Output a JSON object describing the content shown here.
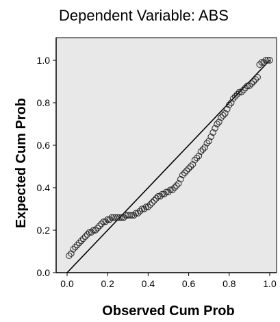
{
  "chart_data": {
    "type": "scatter",
    "title": "Dependent Variable: ABS",
    "xlabel": "Observed Cum Prob",
    "ylabel": "Expected Cum Prob",
    "xlim": [
      0.0,
      1.0
    ],
    "ylim": [
      0.0,
      1.0
    ],
    "x_ticks": [
      "0.0",
      "0.2",
      "0.4",
      "0.6",
      "0.8",
      "1.0"
    ],
    "y_ticks": [
      "0.0",
      "0.2",
      "0.4",
      "0.6",
      "0.8",
      "1.0"
    ],
    "grid": false,
    "reference_line": {
      "from": [
        0,
        0
      ],
      "to": [
        1,
        1
      ]
    },
    "series": [
      {
        "points": [
          [
            0.01,
            0.08
          ],
          [
            0.02,
            0.09
          ],
          [
            0.03,
            0.11
          ],
          [
            0.04,
            0.12
          ],
          [
            0.05,
            0.13
          ],
          [
            0.06,
            0.14
          ],
          [
            0.07,
            0.15
          ],
          [
            0.08,
            0.16
          ],
          [
            0.09,
            0.17
          ],
          [
            0.1,
            0.18
          ],
          [
            0.11,
            0.19
          ],
          [
            0.12,
            0.19
          ],
          [
            0.13,
            0.2
          ],
          [
            0.14,
            0.2
          ],
          [
            0.15,
            0.21
          ],
          [
            0.16,
            0.22
          ],
          [
            0.17,
            0.23
          ],
          [
            0.18,
            0.24
          ],
          [
            0.19,
            0.24
          ],
          [
            0.2,
            0.25
          ],
          [
            0.21,
            0.25
          ],
          [
            0.22,
            0.26
          ],
          [
            0.23,
            0.26
          ],
          [
            0.24,
            0.26
          ],
          [
            0.25,
            0.26
          ],
          [
            0.26,
            0.26
          ],
          [
            0.27,
            0.26
          ],
          [
            0.28,
            0.26
          ],
          [
            0.29,
            0.27
          ],
          [
            0.3,
            0.27
          ],
          [
            0.31,
            0.27
          ],
          [
            0.32,
            0.27
          ],
          [
            0.33,
            0.27
          ],
          [
            0.34,
            0.28
          ],
          [
            0.35,
            0.28
          ],
          [
            0.36,
            0.29
          ],
          [
            0.37,
            0.3
          ],
          [
            0.38,
            0.3
          ],
          [
            0.39,
            0.31
          ],
          [
            0.4,
            0.31
          ],
          [
            0.41,
            0.32
          ],
          [
            0.42,
            0.33
          ],
          [
            0.43,
            0.34
          ],
          [
            0.44,
            0.35
          ],
          [
            0.45,
            0.36
          ],
          [
            0.46,
            0.36
          ],
          [
            0.47,
            0.37
          ],
          [
            0.48,
            0.37
          ],
          [
            0.49,
            0.38
          ],
          [
            0.5,
            0.38
          ],
          [
            0.51,
            0.39
          ],
          [
            0.52,
            0.39
          ],
          [
            0.53,
            0.4
          ],
          [
            0.54,
            0.41
          ],
          [
            0.55,
            0.42
          ],
          [
            0.56,
            0.44
          ],
          [
            0.57,
            0.46
          ],
          [
            0.58,
            0.47
          ],
          [
            0.59,
            0.48
          ],
          [
            0.6,
            0.49
          ],
          [
            0.61,
            0.5
          ],
          [
            0.62,
            0.51
          ],
          [
            0.63,
            0.53
          ],
          [
            0.64,
            0.54
          ],
          [
            0.65,
            0.55
          ],
          [
            0.66,
            0.57
          ],
          [
            0.67,
            0.58
          ],
          [
            0.68,
            0.59
          ],
          [
            0.69,
            0.61
          ],
          [
            0.7,
            0.62
          ],
          [
            0.71,
            0.64
          ],
          [
            0.72,
            0.66
          ],
          [
            0.73,
            0.68
          ],
          [
            0.74,
            0.7
          ],
          [
            0.75,
            0.71
          ],
          [
            0.76,
            0.73
          ],
          [
            0.77,
            0.74
          ],
          [
            0.78,
            0.75
          ],
          [
            0.79,
            0.77
          ],
          [
            0.8,
            0.79
          ],
          [
            0.81,
            0.8
          ],
          [
            0.82,
            0.82
          ],
          [
            0.83,
            0.83
          ],
          [
            0.84,
            0.84
          ],
          [
            0.85,
            0.85
          ],
          [
            0.86,
            0.85
          ],
          [
            0.87,
            0.86
          ],
          [
            0.88,
            0.87
          ],
          [
            0.89,
            0.88
          ],
          [
            0.9,
            0.88
          ],
          [
            0.91,
            0.89
          ],
          [
            0.92,
            0.9
          ],
          [
            0.93,
            0.91
          ],
          [
            0.94,
            0.92
          ],
          [
            0.95,
            0.98
          ],
          [
            0.96,
            0.99
          ],
          [
            0.97,
            0.99
          ],
          [
            0.98,
            1.0
          ],
          [
            0.99,
            1.0
          ],
          [
            1.0,
            1.0
          ]
        ]
      }
    ]
  },
  "style": {
    "plot_background": "#e8e8e8",
    "axis_color": "#000000",
    "marker_stroke": "#222222"
  }
}
